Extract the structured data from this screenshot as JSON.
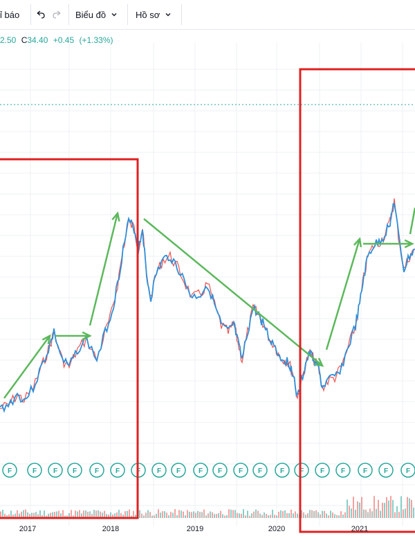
{
  "toolbar": {
    "indicator_label": "ỉ báo",
    "undo_icon": "undo-icon",
    "redo_icon": "redo-icon",
    "chart_menu_label": "Biểu đồ",
    "profile_menu_label": "Hồ sơ"
  },
  "ticker": {
    "low_fragment": "2.50",
    "close_prefix": "C",
    "close_value": "34.40",
    "change": "+0.45",
    "change_pct": "(+1.33%)"
  },
  "colors": {
    "up": "#26a69a",
    "down": "#ef5350",
    "series_line": "#2f8fd8",
    "annotation_arrow": "#5cb85c",
    "annotation_box": "#e02020",
    "grid": "#eef0f3",
    "dotted_level": "#26a69a"
  },
  "chart_data": {
    "type": "line",
    "x_axis_labels": [
      "2017",
      "2018",
      "2019",
      "2020",
      "2021"
    ],
    "event_marker_letter": "F",
    "annotations": {
      "boxes": 2,
      "arrows": "uptrend and downtrend trend arrows"
    }
  }
}
